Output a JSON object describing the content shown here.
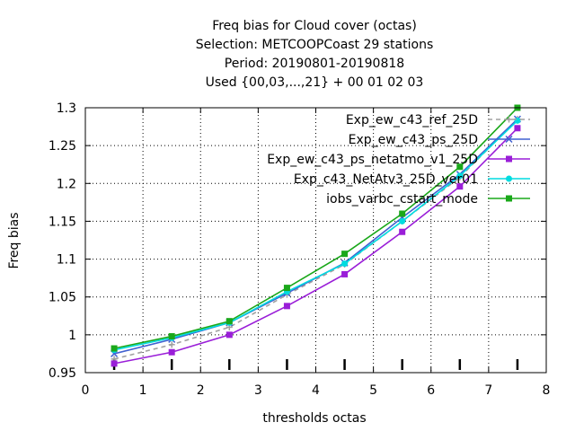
{
  "chart_data": {
    "type": "line",
    "title_lines": [
      "Freq bias  for Cloud cover (octas)",
      "Selection: METCOOPCoast     29 stations",
      "Period: 20190801-20190818",
      "Used {00,03,...,21} + 00 01 02 03"
    ],
    "xlabel": "thresholds octas",
    "ylabel": "Freq bias",
    "xlim": [
      0,
      8
    ],
    "ylim": [
      0.95,
      1.3
    ],
    "xticks": [
      "0",
      "1",
      "2",
      "3",
      "4",
      "5",
      "6",
      "7",
      "8"
    ],
    "yticks": [
      "0.95",
      "1",
      "1.05",
      "1.1",
      "1.15",
      "1.2",
      "1.25",
      "1.3"
    ],
    "x": [
      0.5,
      1.5,
      2.5,
      3.5,
      4.5,
      5.5,
      6.5,
      7.5
    ],
    "legend_position": "top-right",
    "series": [
      {
        "name": "Exp_ew_c43_ref_25D",
        "color": "#a0a0a0",
        "dash": true,
        "marker": "plus",
        "values": [
          0.968,
          0.987,
          1.01,
          1.053,
          1.093,
          1.15,
          1.208,
          1.285
        ]
      },
      {
        "name": "Exp_ew_c43_ps_25D",
        "color": "#4060d0",
        "dash": false,
        "marker": "x",
        "values": [
          0.975,
          0.994,
          1.016,
          1.055,
          1.095,
          1.155,
          1.212,
          1.285
        ]
      },
      {
        "name": "Exp_ew_c43_ps_netatmo_v1_25D",
        "color": "#9a1ed8",
        "dash": false,
        "marker": "square",
        "values": [
          0.962,
          0.977,
          1.0,
          1.038,
          1.08,
          1.136,
          1.196,
          1.273
        ]
      },
      {
        "name": "Exp_c43_NetAtv3_25D_ver01",
        "color": "#00dce0",
        "dash": false,
        "marker": "circle",
        "values": [
          0.98,
          0.996,
          1.016,
          1.057,
          1.094,
          1.15,
          1.21,
          1.283
        ]
      },
      {
        "name": "iobs_varbc_cstart_mode",
        "color": "#1aa81a",
        "dash": false,
        "marker": "square",
        "values": [
          0.982,
          0.998,
          1.018,
          1.062,
          1.107,
          1.16,
          1.222,
          1.3
        ]
      }
    ]
  }
}
